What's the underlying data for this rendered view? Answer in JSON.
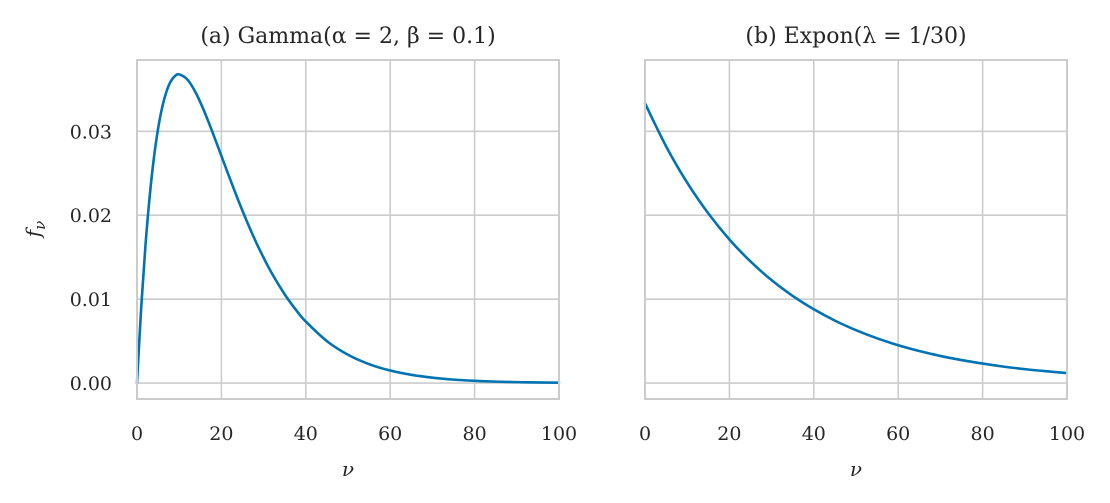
{
  "colors": {
    "line": "#0173b2"
  },
  "shared_y": {
    "label": "f",
    "label_sub": "ν",
    "ticks": [
      0.0,
      0.01,
      0.02,
      0.03
    ],
    "tick_labels": [
      "0.00",
      "0.01",
      "0.02",
      "0.03"
    ]
  },
  "chart_data": [
    {
      "type": "line",
      "title": "(a) Gamma(α = 2, β = 0.1)",
      "xlabel": "ν",
      "ylabel": "f_ν",
      "xlim": [
        0,
        100
      ],
      "ylim": [
        -0.0019,
        0.0385
      ],
      "x_ticks": [
        0,
        20,
        40,
        60,
        80,
        100
      ],
      "x_tick_labels": [
        "0",
        "20",
        "40",
        "60",
        "80",
        "100"
      ],
      "grid": true,
      "series": [
        {
          "x": [
            0,
            1,
            2,
            3,
            4,
            5,
            6,
            7,
            8,
            9,
            10,
            12,
            14,
            16,
            18,
            20,
            22,
            24,
            26,
            28,
            30,
            32,
            35,
            38,
            40,
            45,
            50,
            55,
            60,
            65,
            70,
            75,
            80,
            85,
            90,
            95,
            100
          ],
          "values": [
            0.0,
            0.00905,
            0.01637,
            0.02222,
            0.02681,
            0.03033,
            0.03293,
            0.03476,
            0.03595,
            0.03659,
            0.03679,
            0.03614,
            0.03452,
            0.0323,
            0.02975,
            0.02707,
            0.02438,
            0.02177,
            0.01931,
            0.01702,
            0.01494,
            0.01304,
            0.01057,
            0.0085,
            0.00733,
            0.005,
            0.00337,
            0.00225,
            0.00149,
            0.00098,
            0.00064,
            0.00041,
            0.00027,
            0.00017,
            0.00011,
            7e-05,
            5e-05
          ]
        }
      ]
    },
    {
      "type": "line",
      "title": "(b) Expon(λ = 1/30)",
      "xlabel": "ν",
      "xlim": [
        0,
        100
      ],
      "ylim": [
        -0.0019,
        0.0385
      ],
      "x_ticks": [
        0,
        20,
        40,
        60,
        80,
        100
      ],
      "x_tick_labels": [
        "0",
        "20",
        "40",
        "60",
        "80",
        "100"
      ],
      "grid": true,
      "series": [
        {
          "x": [
            0,
            5,
            10,
            15,
            20,
            25,
            30,
            35,
            40,
            45,
            50,
            55,
            60,
            65,
            70,
            75,
            80,
            85,
            90,
            95,
            100
          ],
          "values": [
            0.03333,
            0.02821,
            0.02388,
            0.02022,
            0.01711,
            0.01449,
            0.01226,
            0.01038,
            0.00879,
            0.00744,
            0.0063,
            0.00533,
            0.00451,
            0.00382,
            0.00323,
            0.00274,
            0.00232,
            0.00196,
            0.00166,
            0.00141,
            0.00119
          ]
        }
      ]
    }
  ]
}
